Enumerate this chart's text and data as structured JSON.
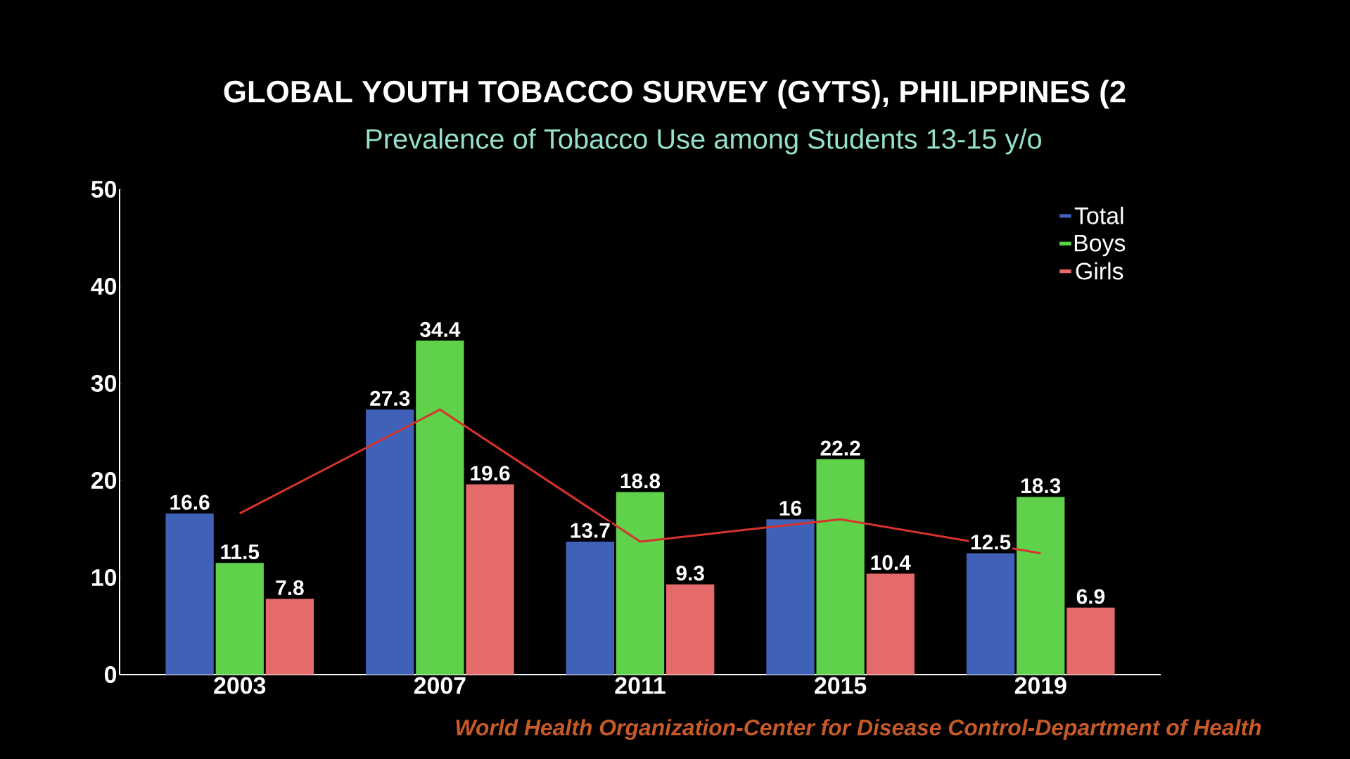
{
  "chart_data": {
    "type": "bar",
    "title": "GLOBAL YOUTH TOBACCO SURVEY (GYTS), PHILIPPINES (2",
    "subtitle": "Prevalence of Tobacco Use among Students 13-15 y/o",
    "categories": [
      "2003",
      "2007",
      "2011",
      "2015",
      "2019"
    ],
    "series": [
      {
        "name": "Total",
        "color": "#3f62b8",
        "values": [
          16.6,
          27.3,
          13.7,
          16,
          12.5
        ],
        "value_labels": [
          "16.6",
          "27.3",
          "13.7",
          "16",
          "12.5"
        ]
      },
      {
        "name": "Boys",
        "color": "#5fd14a",
        "values": [
          11.5,
          34.4,
          18.8,
          22.2,
          18.3
        ],
        "value_labels": [
          "11.5",
          "34.4",
          "18.8",
          "22.2",
          "18.3"
        ]
      },
      {
        "name": "Girls",
        "color": "#e56a6a",
        "values": [
          7.8,
          19.6,
          9.3,
          10.4,
          6.9
        ],
        "value_labels": [
          "7.8",
          "19.6",
          "9.3",
          "10.4",
          "6.9"
        ]
      },
      {
        "type": "line",
        "color": "#d8322c",
        "values": [
          16.6,
          27.3,
          13.7,
          16,
          12.5
        ]
      }
    ],
    "ylim": [
      0,
      50
    ],
    "yticks": [
      0,
      10,
      20,
      30,
      40,
      50
    ],
    "grid": false,
    "legend": "top right",
    "marker": "none",
    "annotations": [
      "World Health Organization-Center for Disease Control-Department of Health"
    ]
  }
}
